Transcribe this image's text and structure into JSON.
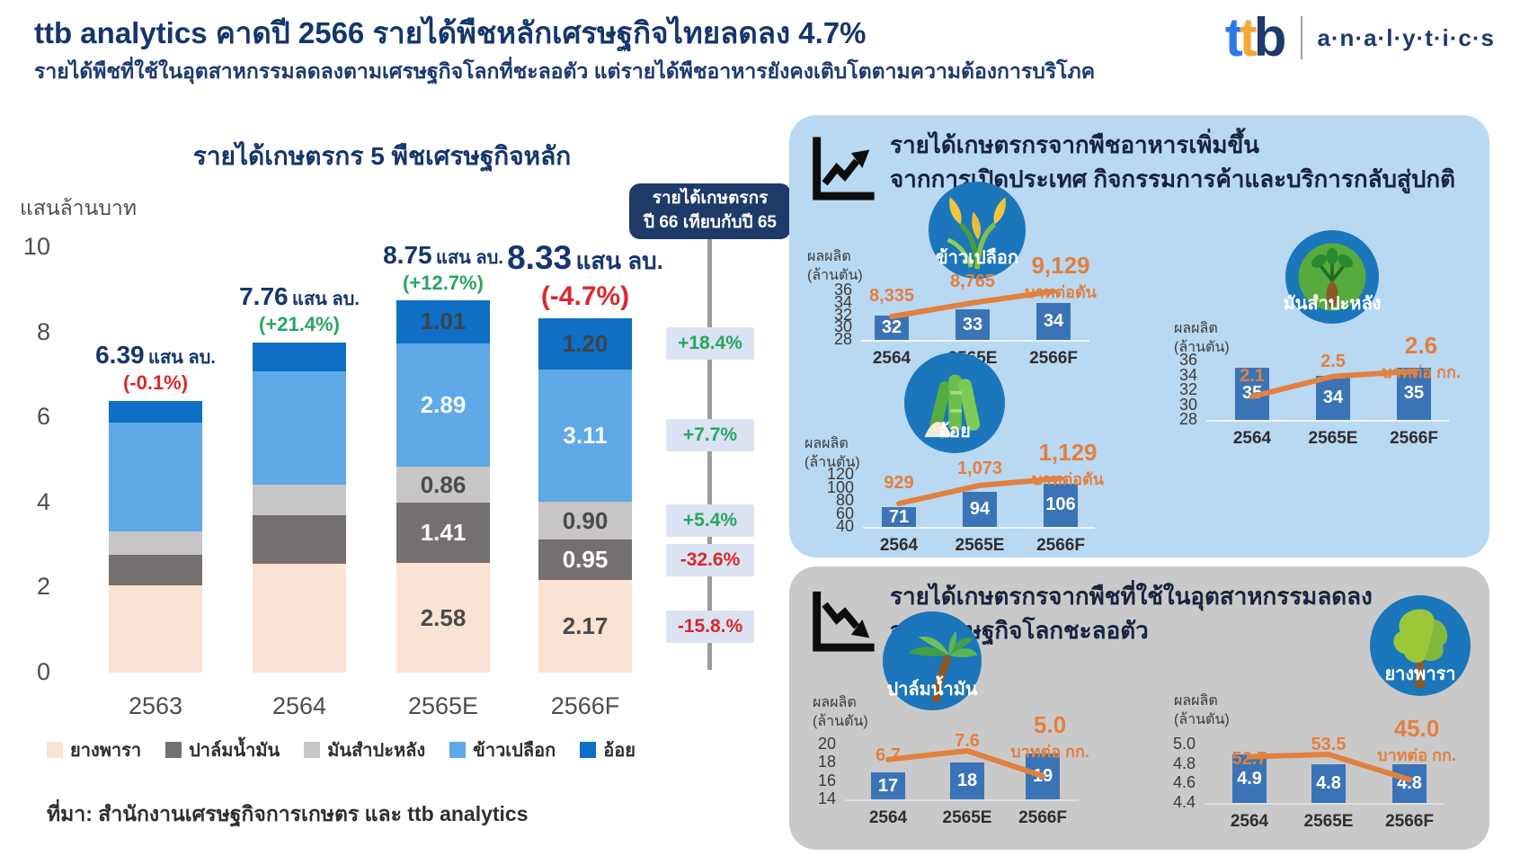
{
  "header": {
    "title": "ttb analytics คาดปี 2566 รายได้พืชหลักเศรษฐกิจไทยลดลง 4.7%",
    "subtitle": "รายได้พืชที่ใช้ในอุตสาหกรรมลดลงตามเศรษฐกิจโลกที่ชะลอตัว แต่รายได้พืชอาหารยังคงเติบโตตามความต้องการบริโภค",
    "logo": {
      "t1": "t",
      "t2": "t",
      "b": "b",
      "wordmark": "a·n·a·l·y·t·i·c·s"
    }
  },
  "comparison": {
    "badge_line1": "รายได้เกษตรกร",
    "badge_line2": "ปี 66  เทียบกับปี 65",
    "rates": [
      {
        "label": "+18.4%",
        "direction": "up"
      },
      {
        "label": "+7.7%",
        "direction": "up"
      },
      {
        "label": "+5.4%",
        "direction": "up"
      },
      {
        "label": "-32.6%",
        "direction": "down"
      },
      {
        "label": "-15.8.%",
        "direction": "down"
      }
    ]
  },
  "panels": {
    "food": {
      "title_line1": "รายได้เกษตรกรจากพืชอาหารเพิ่มขึ้น",
      "title_line2": "จากการเปิดประเทศ กิจกรรมการค้าและบริการกลับสู่ปกติ",
      "icon": "trend-up-icon"
    },
    "industrial": {
      "title_line1": "รายได้เกษตรกรจากพืชที่ใช้ในอุตสาหกรรมลดลง",
      "title_line2": "จากเศรษฐกิจโลกชะลอตัว",
      "icon": "trend-down-icon"
    }
  },
  "colors": {
    "navy": "#15356d",
    "green": "#27a661",
    "red": "#d9282e",
    "orange": "#e2803f",
    "panel_blue": "#b9d8f2",
    "panel_gray": "#c9c9c9",
    "mini_bar": "#3b74b6",
    "badge_navy": "#1e3a69",
    "chip_bg": "#dbe3f2"
  },
  "chart_data": [
    {
      "id": "farm-income-stacked",
      "type": "bar",
      "stacked": true,
      "title": "รายได้เกษตรกร 5 พืชเศรษฐกิจหลัก",
      "ylabel": "แสนล้านบาท",
      "ylim": [
        0,
        10
      ],
      "yticks": [
        "10",
        "8",
        "6",
        "4",
        "2",
        "0"
      ],
      "ytick_values": [
        10,
        8,
        6,
        4,
        2,
        0
      ],
      "grid": false,
      "legend_position": "bottom",
      "categories": [
        "2563",
        "2564",
        "2565E",
        "2566F"
      ],
      "series": [
        {
          "name": "ยางพารา",
          "color": "#fae3d2",
          "label_color": "#4a4a4a",
          "values": [
            2.05,
            2.56,
            2.58,
            2.17
          ],
          "labels": [
            "",
            "",
            "2.58",
            "2.17"
          ]
        },
        {
          "name": "ปาล์มน้ำมัน",
          "color": "#757070",
          "label_color": "#ffffff",
          "values": [
            0.72,
            1.15,
            1.41,
            0.95
          ],
          "labels": [
            "",
            "",
            "1.41",
            "0.95"
          ]
        },
        {
          "name": "มันสำปะหลัง",
          "color": "#c7c5c5",
          "label_color": "#4a4a4a",
          "values": [
            0.55,
            0.71,
            0.86,
            0.9
          ],
          "labels": [
            "",
            "",
            "0.86",
            "0.90"
          ]
        },
        {
          "name": "ข้าวเปลือก",
          "color": "#5fa9e7",
          "label_color": "#f4f9ff",
          "values": [
            2.55,
            2.66,
            2.89,
            3.11
          ],
          "labels": [
            "",
            "",
            "2.89",
            "3.11"
          ]
        },
        {
          "name": "อ้อย",
          "color": "#0e6fc4",
          "label_color": "#3f4448",
          "values": [
            0.52,
            0.68,
            1.01,
            1.2
          ],
          "labels": [
            "",
            "",
            "1.01",
            "1.20"
          ]
        }
      ],
      "totals": [
        {
          "value": "6.39",
          "unit": "แสน ลบ.",
          "change": "(-0.1%)",
          "trend": "down",
          "emphasis": false
        },
        {
          "value": "7.76",
          "unit": "แสน ลบ.",
          "change": "(+21.4%)",
          "trend": "up",
          "emphasis": false
        },
        {
          "value": "8.75",
          "unit": "แสน ลบ.",
          "change": "(+12.7%)",
          "trend": "up",
          "emphasis": false
        },
        {
          "value": "8.33",
          "unit": "แสน ลบ.",
          "change": "(-4.7%)",
          "trend": "down",
          "emphasis": true
        }
      ],
      "source": "ที่มา: สำนักงานเศรษฐกิจการเกษตร และ ttb analytics"
    },
    {
      "id": "rice",
      "type": "bar-line",
      "panel": "food",
      "crop": "ข้าวเปลือก",
      "icon": "rice-icon",
      "ylabel_line1": "ผลผลิต",
      "ylabel_line2": "(ล้านตัน)",
      "yticks": [
        "36",
        "34",
        "32",
        "30",
        "28"
      ],
      "ytick_values": [
        36,
        34,
        32,
        30,
        28
      ],
      "ylim": [
        28,
        36
      ],
      "categories": [
        "2564",
        "2565E",
        "2566F"
      ],
      "bars": [
        32,
        33,
        34
      ],
      "bar_labels": [
        "32",
        "33",
        "34"
      ],
      "price": {
        "values": [
          8335,
          8765,
          9129
        ],
        "labels": [
          "8,335",
          "8,765",
          "9,129"
        ],
        "unit": "บาทต่อตัน"
      }
    },
    {
      "id": "cassava",
      "type": "bar-line",
      "panel": "food",
      "crop": "มันสำปะหลัง",
      "icon": "cassava-icon",
      "ylabel_line1": "ผลผลิต",
      "ylabel_line2": "(ล้านตัน)",
      "yticks": [
        "36",
        "34",
        "32",
        "30",
        "28"
      ],
      "ytick_values": [
        36,
        34,
        32,
        30,
        28
      ],
      "ylim": [
        28,
        36
      ],
      "categories": [
        "2564",
        "2565E",
        "2566F"
      ],
      "bars": [
        35,
        34,
        35
      ],
      "bar_labels": [
        "35",
        "34",
        "35"
      ],
      "price": {
        "values": [
          2.1,
          2.5,
          2.6
        ],
        "labels": [
          "2.1",
          "2.5",
          "2.6"
        ],
        "unit": "บาทต่อ กก."
      }
    },
    {
      "id": "sugarcane",
      "type": "bar-line",
      "panel": "food",
      "crop": "อ้อย",
      "icon": "sugarcane-icon",
      "ylabel_line1": "ผลผลิต",
      "ylabel_line2": "(ล้านตัน)",
      "yticks": [
        "120",
        "100",
        "80",
        "60",
        "40"
      ],
      "ytick_values": [
        120,
        100,
        80,
        60,
        40
      ],
      "ylim": [
        40,
        120
      ],
      "categories": [
        "2564",
        "2565E",
        "2566F"
      ],
      "bars": [
        71,
        94,
        106
      ],
      "bar_labels": [
        "71",
        "94",
        "106"
      ],
      "price": {
        "values": [
          929,
          1073,
          1129
        ],
        "labels": [
          "929",
          "1,073",
          "1,129"
        ],
        "unit": "บาทต่อตัน"
      }
    },
    {
      "id": "palm",
      "type": "bar-line",
      "panel": "industrial",
      "crop": "ปาล์มน้ำมัน",
      "icon": "palm-icon",
      "ylabel_line1": "ผลผลิต",
      "ylabel_line2": "(ล้านตัน)",
      "yticks": [
        "20",
        "18",
        "16",
        "14"
      ],
      "ytick_values": [
        20,
        18,
        16,
        14
      ],
      "ylim": [
        14,
        20
      ],
      "categories": [
        "2564",
        "2565E",
        "2566F"
      ],
      "bars": [
        17,
        18,
        19
      ],
      "bar_labels": [
        "17",
        "18",
        "19"
      ],
      "price": {
        "values": [
          6.7,
          7.6,
          5.0
        ],
        "labels": [
          "6.7",
          "7.6",
          "5.0"
        ],
        "unit": "บาทต่อ กก."
      }
    },
    {
      "id": "rubber",
      "type": "bar-line",
      "panel": "industrial",
      "crop": "ยางพารา",
      "icon": "rubber-icon",
      "ylabel_line1": "ผลผลิต",
      "ylabel_line2": "(ล้านตัน)",
      "yticks": [
        "5.0",
        "4.8",
        "4.6",
        "4.4"
      ],
      "ytick_values": [
        5.0,
        4.8,
        4.6,
        4.4
      ],
      "ylim": [
        4.4,
        5.0
      ],
      "categories": [
        "2564",
        "2565E",
        "2566F"
      ],
      "bars": [
        4.9,
        4.8,
        4.8
      ],
      "bar_labels": [
        "4.9",
        "4.8",
        "4.8"
      ],
      "price": {
        "values": [
          52.7,
          53.5,
          45.0
        ],
        "labels": [
          "52.7",
          "53.5",
          "45.0"
        ],
        "unit": "บาทต่อ กก."
      }
    }
  ]
}
